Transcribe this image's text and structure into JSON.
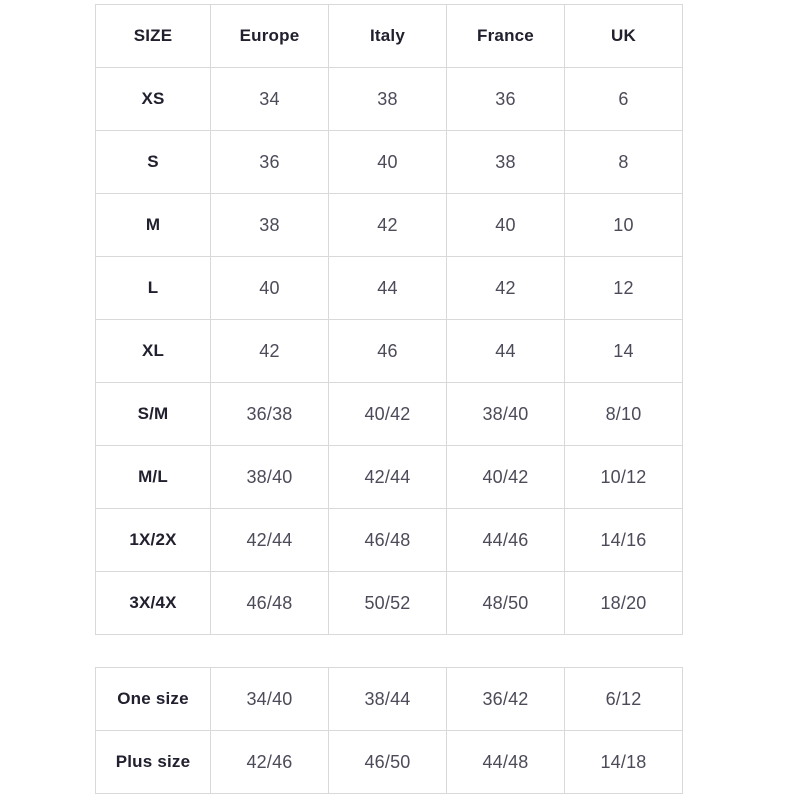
{
  "colors": {
    "border": "#d9d9d9",
    "header_text": "#20202e",
    "value_text": "#4b4b59",
    "background": "#ffffff"
  },
  "chart_data": [
    {
      "type": "table",
      "name": "standard-sizes",
      "columns": [
        "SIZE",
        "Europe",
        "Italy",
        "France",
        "UK"
      ],
      "rows": [
        [
          "XS",
          "34",
          "38",
          "36",
          "6"
        ],
        [
          "S",
          "36",
          "40",
          "38",
          "8"
        ],
        [
          "M",
          "38",
          "42",
          "40",
          "10"
        ],
        [
          "L",
          "40",
          "44",
          "42",
          "12"
        ],
        [
          "XL",
          "42",
          "46",
          "44",
          "14"
        ],
        [
          "S/M",
          "36/38",
          "40/42",
          "38/40",
          "8/10"
        ],
        [
          "M/L",
          "38/40",
          "42/44",
          "40/42",
          "10/12"
        ],
        [
          "1X/2X",
          "42/44",
          "46/48",
          "44/46",
          "14/16"
        ],
        [
          "3X/4X",
          "46/48",
          "50/52",
          "48/50",
          "18/20"
        ]
      ]
    },
    {
      "type": "table",
      "name": "special-sizes",
      "columns": [],
      "rows": [
        [
          "One size",
          "34/40",
          "38/44",
          "36/42",
          "6/12"
        ],
        [
          "Plus size",
          "42/46",
          "46/50",
          "44/48",
          "14/18"
        ]
      ]
    }
  ]
}
